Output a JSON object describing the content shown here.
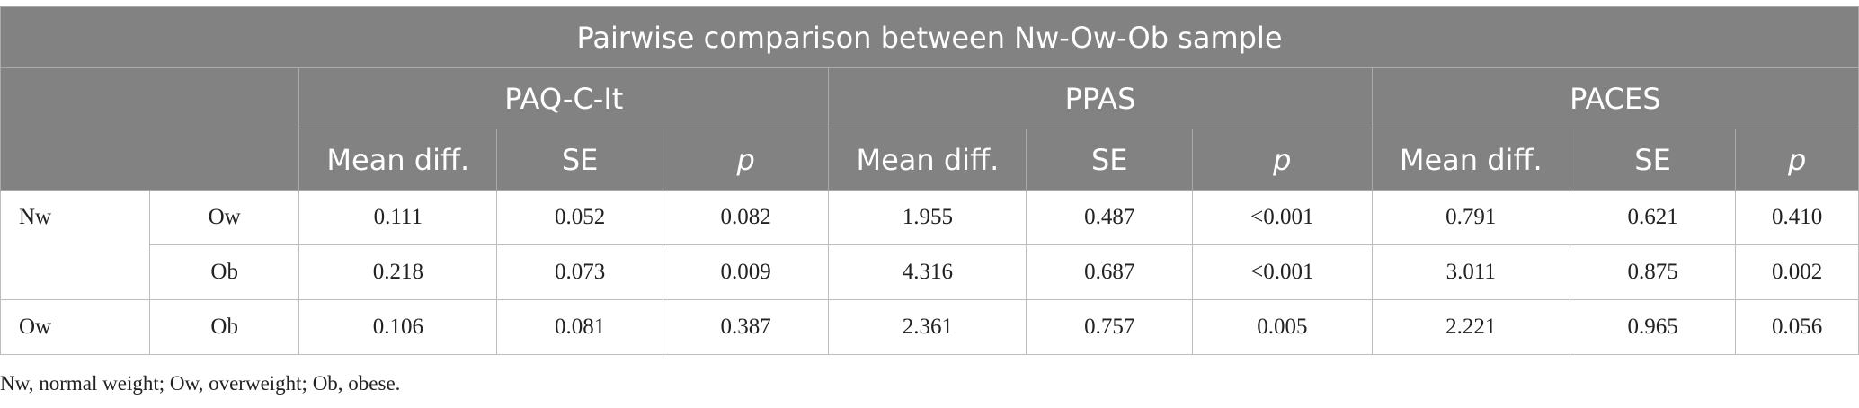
{
  "table": {
    "title": "Pairwise comparison between Nw-Ow-Ob sample",
    "groups": [
      "PAQ-C-It",
      "PPAS",
      "PACES"
    ],
    "subheaders": [
      "Mean diff.",
      "SE",
      "p"
    ],
    "rows": [
      {
        "a": "Nw",
        "b": "Ow",
        "v": [
          "0.111",
          "0.052",
          "0.082",
          "1.955",
          "0.487",
          "<0.001",
          "0.791",
          "0.621",
          "0.410"
        ]
      },
      {
        "a": "",
        "b": "Ob",
        "v": [
          "0.218",
          "0.073",
          "0.009",
          "4.316",
          "0.687",
          "<0.001",
          "3.011",
          "0.875",
          "0.002"
        ]
      },
      {
        "a": "Ow",
        "b": "Ob",
        "v": [
          "0.106",
          "0.081",
          "0.387",
          "2.361",
          "0.757",
          "0.005",
          "2.221",
          "0.965",
          "0.056"
        ]
      }
    ]
  },
  "footnote": "Nw, normal weight; Ow, overweight; Ob, obese.",
  "colors": {
    "header_bg": "#828282",
    "header_text": "#ffffff",
    "border": "#bdbdbd"
  }
}
